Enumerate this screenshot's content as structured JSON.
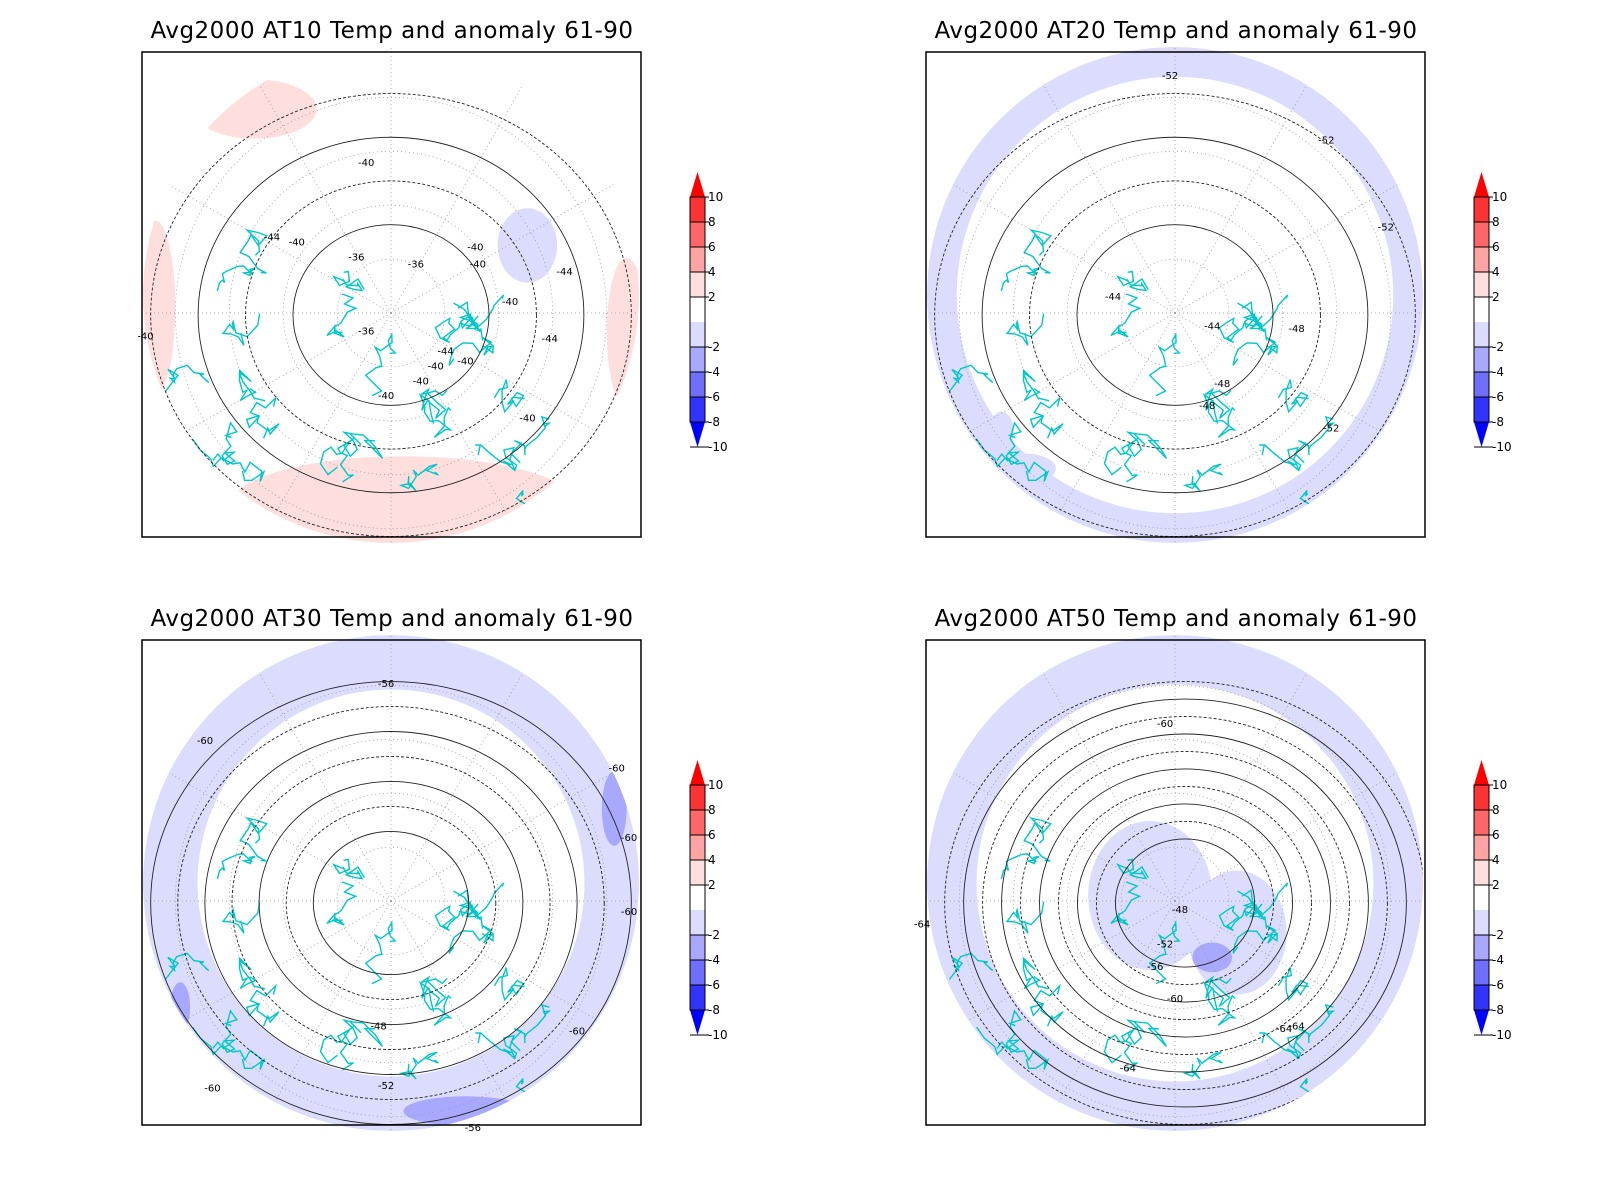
{
  "colorbar": {
    "ticks": [
      "10",
      "8",
      "6",
      "4",
      "2",
      "-2",
      "-4",
      "-6",
      "-8",
      "-10"
    ],
    "colors": {
      "above_10": "#ff0000",
      "8_10": "#ff3333",
      "6_8": "#ff6666",
      "4_6": "#ffa3a3",
      "2_4": "#ffdede",
      "neutral": "#ffffff",
      "m4_m2": "#dcdcff",
      "m6_m4": "#a8a8ff",
      "m8_m6": "#6e6eff",
      "m10_m8": "#3333ff",
      "below_m10": "#0000ff"
    }
  },
  "coastline_color": "#00c8c8",
  "panels": [
    {
      "title": "Avg2000 AT10 Temp and anomaly 61-90",
      "contour_labels": [
        "-40",
        "-44",
        "-40",
        "-36",
        "-36",
        "-40",
        "-40",
        "-44",
        "-40",
        "-36",
        "-44",
        "-44",
        "-40",
        "-40",
        "-40",
        "-40",
        "-40",
        "-40"
      ]
    },
    {
      "title": "Avg2000 AT20 Temp and anomaly 61-90",
      "contour_labels": [
        "-52",
        "-52",
        "-52",
        "-44",
        "-44",
        "-48",
        "-48",
        "-48",
        "-52"
      ]
    },
    {
      "title": "Avg2000 AT30 Temp and anomaly 61-90",
      "contour_labels": [
        "-56",
        "-60",
        "-60",
        "-60",
        "-60",
        "-48",
        "-52",
        "-56",
        "-60",
        "-60"
      ]
    },
    {
      "title": "Avg2000 AT50 Temp and anomaly 61-90",
      "contour_labels": [
        "-60",
        "-48",
        "-52",
        "-56",
        "-60",
        "-64",
        "-64",
        "-64",
        "-64"
      ]
    }
  ]
}
